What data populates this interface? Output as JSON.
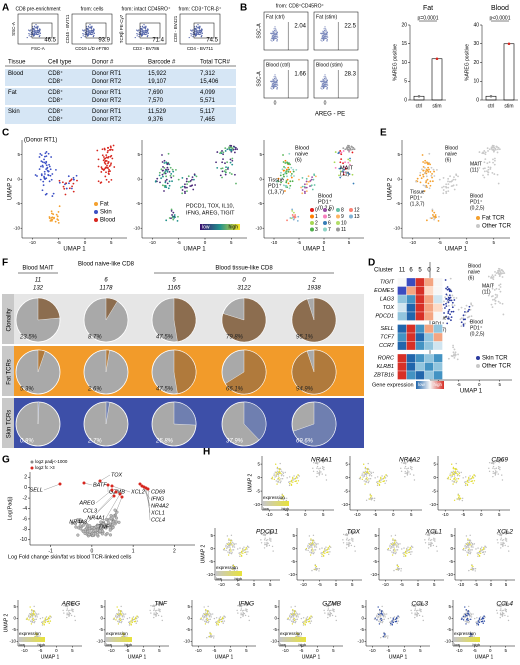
{
  "figure": {
    "A": {
      "label": "A",
      "gates": [
        {
          "title": "CD8 pre-enrichment",
          "value": 46.5,
          "x_label": "FSC-A",
          "y_label": "SSC-A"
        },
        {
          "title": "from: cells",
          "value": 93.9,
          "x_label": "CD19 L/D eF780",
          "y_label": "CD45 - BV711"
        },
        {
          "title": "from: intact CD45RO⁺",
          "value": 71.4,
          "x_label": "CD3 - BV786",
          "y_label": "TCRβ PE-Cy7"
        },
        {
          "title": "from: CD3⁺TCR-β⁺",
          "value": 74.5,
          "x_label": "CD4 - BV711",
          "y_label": "CD8 - BV421"
        }
      ],
      "table": {
        "header": [
          "Tissue",
          "Cell type",
          "Donor #",
          "Barcode #",
          "Total TCR#"
        ],
        "groups": [
          {
            "tissue": "Blood",
            "rows": [
              [
                "CD8⁺",
                "Donor RT1",
                "15,922",
                "7,312"
              ],
              [
                "CD8⁺",
                "Donor RT2",
                "19,107",
                "15,406"
              ]
            ]
          },
          {
            "tissue": "Fat",
            "rows": [
              [
                "CD8⁺",
                "Donor RT1",
                "7,690",
                "4,099"
              ],
              [
                "CD8⁺",
                "Donor RT2",
                "7,570",
                "5,571"
              ]
            ]
          },
          {
            "tissue": "Skin",
            "rows": [
              [
                "CD8⁺",
                "Donor RT1",
                "11,529",
                "5,117"
              ],
              [
                "CD8⁺",
                "Donor RT2",
                "9,376",
                "7,465"
              ]
            ]
          }
        ]
      }
    },
    "B": {
      "label": "B",
      "from": "from: CD8⁺CD45RO⁺",
      "y_label": "SSC-A",
      "x_label": "AREG - PE",
      "x_tick": 0,
      "gates": [
        {
          "title": "Fat (ctrl)",
          "value": 2.04
        },
        {
          "title": "Fat (stim)",
          "value": 22.5
        },
        {
          "title": "Blood (ctrl)",
          "value": 1.66
        },
        {
          "title": "Blood (stim)",
          "value": 28.3
        }
      ],
      "bars": [
        {
          "title": "Fat",
          "p": "p=0.0001",
          "y_label": "%AREG positive",
          "categories": [
            "ctrl",
            "stim"
          ],
          "values": [
            1,
            11
          ],
          "ylim": [
            0,
            20
          ],
          "yticks": [
            0,
            5,
            10,
            15,
            20
          ]
        },
        {
          "title": "Blood",
          "p": "p<0.0001",
          "y_label": "%AREG positive",
          "categories": [
            "ctrl",
            "stim"
          ],
          "values": [
            2,
            30
          ],
          "ylim": [
            0,
            40
          ],
          "yticks": [
            0,
            10,
            20,
            30,
            40
          ]
        }
      ]
    },
    "umap": {
      "x_label": "UMAP 1",
      "y_label": "UMAP 2",
      "xlim": [
        -12,
        8
      ],
      "ylim": [
        -12,
        8
      ],
      "xticks": [
        -10,
        -5,
        0,
        5
      ],
      "yticks": [
        5,
        0,
        -5,
        -10
      ]
    },
    "C": {
      "label": "C",
      "donor": "(Donor RT1)",
      "legend": [
        {
          "name": "Fat",
          "color": "#f4a02e"
        },
        {
          "name": "Skin",
          "color": "#3b4fc4"
        },
        {
          "name": "Blood",
          "color": "#d7261e"
        }
      ],
      "genes": [
        "PDCD1, TOX, IL10,",
        "IFNG, AREG, TIGIT"
      ],
      "scale": [
        "low",
        "high"
      ],
      "annotations": [
        [
          "Blood",
          "naive",
          "(6)"
        ],
        [
          "MAIT",
          "(11)"
        ],
        [
          "Tissue",
          "PD1⁺",
          "(1,3,7)"
        ],
        [
          "Blood",
          "PD1⁺",
          "(0,2,5)"
        ]
      ],
      "clusters": [
        0,
        1,
        2,
        3,
        4,
        5,
        6,
        7,
        8,
        9,
        10,
        11,
        12,
        13
      ],
      "cluster_colors": [
        "#e41a1c",
        "#ff7f00",
        "#a6d854",
        "#4daf4a",
        "#984ea3",
        "#f781bf",
        "#377eb8",
        "#8dd3c7",
        "#66c2a5",
        "#fdb462",
        "#b3de69",
        "#999999",
        "#fb8072",
        "#80b1d3"
      ]
    },
    "D": {
      "label": "D",
      "cluster_title": "Cluster",
      "clusters": [
        11,
        6,
        5,
        0,
        2
      ],
      "genes": [
        "TIGIT",
        "EOMES",
        "LAG3",
        "TOX",
        "PDCD1",
        "SELL",
        "TCF7",
        "CCR7",
        "RORC",
        "KLRB1",
        "ZBTB16"
      ],
      "cell_colors": [
        [
          "#f7f7f7",
          "#3b4cc0",
          "#d73027",
          "#f4a582",
          "#f7f7f7"
        ],
        [
          "#3b4cc0",
          "#f4a582",
          "#d73027",
          "#fddbc7",
          "#f7f7f7"
        ],
        [
          "#92c5de",
          "#4393c3",
          "#d73027",
          "#f4a582",
          "#d1e5f0"
        ],
        [
          "#d1e5f0",
          "#2166ac",
          "#d73027",
          "#f4a582",
          "#fddbc7"
        ],
        [
          "#92c5de",
          "#2166ac",
          "#d73027",
          "#f4a582",
          "#f7f7f7"
        ],
        [
          "#2166ac",
          "#d73027",
          "#4393c3",
          "#f4a582",
          "#92c5de"
        ],
        [
          "#4393c3",
          "#d73027",
          "#2166ac",
          "#92c5de",
          "#f4a582"
        ],
        [
          "#2166ac",
          "#d73027",
          "#4393c3",
          "#92c5de",
          "#d1e5f0"
        ],
        [
          "#d73027",
          "#2166ac",
          "#4393c3",
          "#92c5de",
          "#4393c3"
        ],
        [
          "#d73027",
          "#2166ac",
          "#92c5de",
          "#4393c3",
          "#92c5de"
        ],
        [
          "#d73027",
          "#4393c3",
          "#2166ac",
          "#92c5de",
          "#4393c3"
        ]
      ],
      "scale_title": "Gene expression",
      "scale": [
        "low",
        "high"
      ]
    },
    "E": {
      "label": "E",
      "top_legend": [
        {
          "name": "Fat TCR",
          "color": "#f4a02e"
        },
        {
          "name": "Other TCR",
          "color": "#c8c8c8"
        }
      ],
      "bottom_legend": [
        {
          "name": "Skin TCR",
          "color": "#2b3a9e"
        },
        {
          "name": "Other TCR",
          "color": "#c8c8c8"
        }
      ]
    },
    "F": {
      "label": "F",
      "groups": [
        "Blood MAIT",
        "Blood naive-like CD8",
        "Blood tissue-like CD8"
      ],
      "clusters": [
        11,
        6,
        5,
        0,
        2
      ],
      "counts": [
        132,
        1178,
        1165,
        3122,
        1938
      ],
      "rows": [
        {
          "name": "Clonality",
          "color": "#e6e6e6",
          "values": [
            23.5,
            8.7,
            47.5,
            79.8,
            95.1
          ],
          "value_labels": [
            "23.5%",
            "8.7%",
            "47.5%",
            "79.8%",
            "95.1%"
          ]
        },
        {
          "name": "Fat TCRs",
          "color": "#f29b2a",
          "values": [
            5.3,
            2.6,
            47.5,
            66.1,
            94.9
          ],
          "value_labels": [
            "5.3%",
            "2.6%",
            "47.5%",
            "66.1%",
            "94.9%"
          ]
        },
        {
          "name": "Skin TCRs",
          "color": "#3d4fa8",
          "values": [
            0.8,
            2.7,
            25.8,
            37.9,
            69.6
          ],
          "value_labels": [
            "0.8%",
            "2.7%",
            "25.8%",
            "37.9%",
            "69.6%"
          ]
        }
      ]
    },
    "G": {
      "label": "G",
      "legend": [
        "log2 padj<-1000",
        "log2 fc >3"
      ],
      "y_label": "Log(Padj)",
      "x_label": "Log Fold change skin/fat vs blood TCR-linked cells",
      "xlim": [
        -1.5,
        2.5
      ],
      "xticks": [
        -1,
        0,
        1,
        2
      ],
      "ylim": [
        -11,
        3
      ],
      "yticks": [
        2,
        0,
        -2,
        -4,
        -6,
        -8,
        -10
      ],
      "genes": [
        "TOX",
        "BATF",
        "SELL",
        "GZMB",
        "XCL2",
        "CD69",
        "IFNG",
        "NR4A2",
        "XCL1",
        "CCL4",
        "AREG",
        "CCL3",
        "NR4A1",
        "NR4A3",
        "TNF"
      ]
    },
    "H": {
      "label": "H",
      "genes": [
        "NR4A1",
        "NR4A2",
        "CD69",
        "PDCD1",
        "TOX",
        "XCL1",
        "XCL2",
        "AREG",
        "TNF",
        "IFNG",
        "GZMB",
        "CCL3",
        "CCL4"
      ],
      "scale_title": "expression",
      "scale": [
        "low",
        "high"
      ]
    }
  }
}
